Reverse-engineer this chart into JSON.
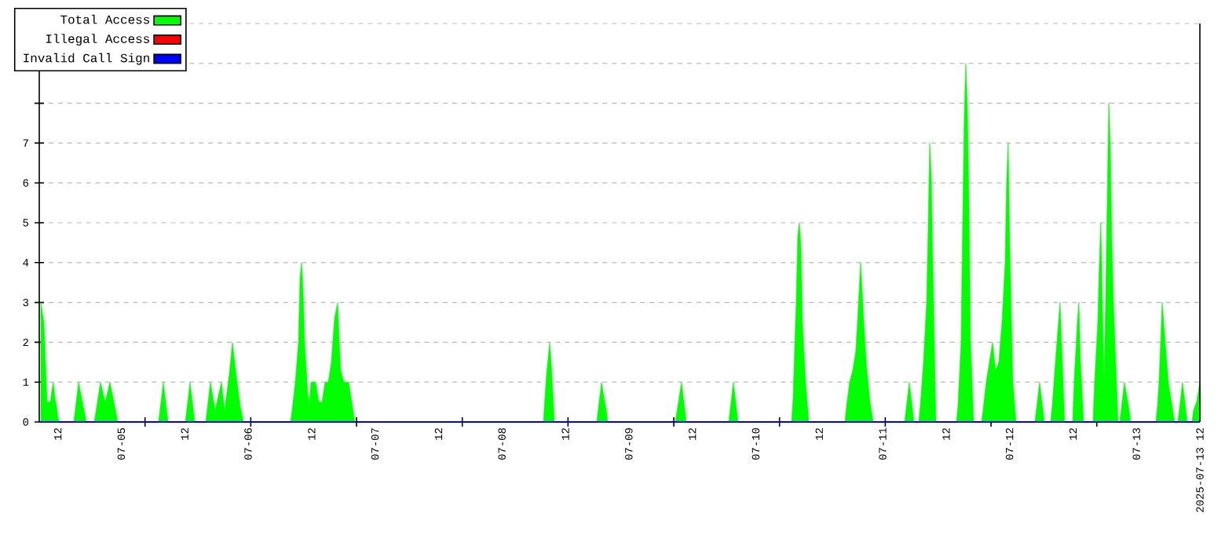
{
  "chart_data": {
    "type": "area",
    "xlim": [
      "2025-07-04T08:30",
      "2025-07-13T12:00"
    ],
    "xticks": [
      {
        "value": "2025-07-04T12:00",
        "label": "12"
      },
      {
        "value": "2025-07-05T00:00",
        "label": "07-05"
      },
      {
        "value": "2025-07-05T12:00",
        "label": "12"
      },
      {
        "value": "2025-07-06T00:00",
        "label": "07-06"
      },
      {
        "value": "2025-07-06T12:00",
        "label": "12"
      },
      {
        "value": "2025-07-07T00:00",
        "label": "07-07"
      },
      {
        "value": "2025-07-07T12:00",
        "label": "12"
      },
      {
        "value": "2025-07-08T00:00",
        "label": "07-08"
      },
      {
        "value": "2025-07-08T12:00",
        "label": "12"
      },
      {
        "value": "2025-07-09T00:00",
        "label": "07-09"
      },
      {
        "value": "2025-07-09T12:00",
        "label": "12"
      },
      {
        "value": "2025-07-10T00:00",
        "label": "07-10"
      },
      {
        "value": "2025-07-10T12:00",
        "label": "12"
      },
      {
        "value": "2025-07-11T00:00",
        "label": "07-11"
      },
      {
        "value": "2025-07-11T12:00",
        "label": "12"
      },
      {
        "value": "2025-07-12T00:00",
        "label": "07-12"
      },
      {
        "value": "2025-07-12T12:00",
        "label": "12"
      },
      {
        "value": "2025-07-13T00:00",
        "label": "07-13"
      },
      {
        "value": "2025-07-13T12:00",
        "label": "2025-07-13 12"
      },
      {
        "value": "2025-07-05T04:30",
        "label": null
      },
      {
        "value": "2025-07-06T00:30",
        "label": null
      },
      {
        "value": "2025-07-06T20:30",
        "label": null
      },
      {
        "value": "2025-07-07T16:30",
        "label": null
      },
      {
        "value": "2025-07-08T12:30",
        "label": null
      },
      {
        "value": "2025-07-09T08:30",
        "label": null
      },
      {
        "value": "2025-07-10T04:30",
        "label": null
      },
      {
        "value": "2025-07-11T00:30",
        "label": null
      },
      {
        "value": "2025-07-11T20:30",
        "label": null
      },
      {
        "value": "2025-07-12T16:30",
        "label": null
      }
    ],
    "ylim": [
      0,
      10
    ],
    "yticks": [
      0,
      1,
      2,
      3,
      4,
      5,
      6,
      7,
      {
        "value": 8,
        "label": null
      },
      {
        "value": 9,
        "label": null
      },
      {
        "value": 10,
        "label": null
      }
    ],
    "grid": "y",
    "legend": "top left",
    "series": [
      {
        "name": "Total Access",
        "color": "#00ff00",
        "x": [
          "2025-07-04T08:48",
          "2025-07-04T09:23",
          "2025-07-04T09:41",
          "2025-07-04T09:59",
          "2025-07-04T10:35",
          "2025-07-04T10:53",
          "2025-07-04T11:10",
          "2025-07-04T11:28",
          "2025-07-04T11:46",
          "2025-07-04T12:04",
          "2025-07-04T12:22",
          "2025-07-04T15:02",
          "2025-07-04T15:56",
          "2025-07-04T16:49",
          "2025-07-04T17:25",
          "2025-07-04T18:54",
          "2025-07-04T20:05",
          "2025-07-04T20:58",
          "2025-07-04T21:52",
          "2025-07-04T22:46",
          "2025-07-04T23:21",
          "2025-07-05T07:04",
          "2025-07-05T07:58",
          "2025-07-05T08:51",
          "2025-07-05T12:07",
          "2025-07-05T13:01",
          "2025-07-05T13:54",
          "2025-07-05T15:59",
          "2025-07-05T16:52",
          "2025-07-05T17:46",
          "2025-07-05T18:57",
          "2025-07-05T19:33",
          "2025-07-05T20:26",
          "2025-07-05T21:02",
          "2025-07-05T21:55",
          "2025-07-05T22:31",
          "2025-07-05T23:07",
          "2025-07-06T08:01",
          "2025-07-06T08:19",
          "2025-07-06T08:55",
          "2025-07-06T09:31",
          "2025-07-06T09:48",
          "2025-07-06T10:06",
          "2025-07-06T10:24",
          "2025-07-06T10:41",
          "2025-07-06T11:17",
          "2025-07-06T11:35",
          "2025-07-06T11:53",
          "2025-07-06T12:46",
          "2025-07-06T13:22",
          "2025-07-06T13:58",
          "2025-07-06T14:33",
          "2025-07-06T15:09",
          "2025-07-06T15:44",
          "2025-07-06T16:20",
          "2025-07-06T16:56",
          "2025-07-06T17:14",
          "2025-07-06T17:31",
          "2025-07-06T18:07",
          "2025-07-06T19:01",
          "2025-07-06T19:36",
          "2025-07-06T20:11",
          "2025-07-08T07:50",
          "2025-07-08T08:26",
          "2025-07-08T09:02",
          "2025-07-08T09:19",
          "2025-07-08T09:55",
          "2025-07-08T17:56",
          "2025-07-08T18:50",
          "2025-07-08T19:43",
          "2025-07-08T20:01",
          "2025-07-09T08:47",
          "2025-07-09T09:58",
          "2025-07-09T10:52",
          "2025-07-09T18:53",
          "2025-07-09T19:46",
          "2025-07-09T20:40",
          "2025-07-10T06:46",
          "2025-07-10T07:04",
          "2025-07-10T07:22",
          "2025-07-10T07:39",
          "2025-07-10T07:57",
          "2025-07-10T08:15",
          "2025-07-10T08:33",
          "2025-07-10T08:50",
          "2025-07-10T09:26",
          "2025-07-10T10:02",
          "2025-07-10T16:52",
          "2025-07-10T17:10",
          "2025-07-10T17:45",
          "2025-07-10T18:21",
          "2025-07-10T18:56",
          "2025-07-10T19:14",
          "2025-07-10T19:50",
          "2025-07-10T20:08",
          "2025-07-10T20:26",
          "2025-07-10T21:01",
          "2025-07-10T21:37",
          "2025-07-10T22:13",
          "2025-07-11T04:09",
          "2025-07-11T05:02",
          "2025-07-11T05:56",
          "2025-07-11T06:49",
          "2025-07-11T07:07",
          "2025-07-11T07:43",
          "2025-07-11T08:19",
          "2025-07-11T08:36",
          "2025-07-11T08:54",
          "2025-07-11T09:12",
          "2025-07-11T09:29",
          "2025-07-11T09:47",
          "2025-07-11T10:05",
          "2025-07-11T13:57",
          "2025-07-11T14:15",
          "2025-07-11T14:50",
          "2025-07-11T15:08",
          "2025-07-11T15:26",
          "2025-07-11T15:44",
          "2025-07-11T16:02",
          "2025-07-11T16:19",
          "2025-07-11T16:37",
          "2025-07-11T16:55",
          "2025-07-11T17:13",
          "2025-07-11T18:42",
          "2025-07-11T19:00",
          "2025-07-11T19:35",
          "2025-07-11T20:11",
          "2025-07-11T20:47",
          "2025-07-11T21:22",
          "2025-07-11T21:58",
          "2025-07-11T22:34",
          "2025-07-11T23:10",
          "2025-07-11T23:27",
          "2025-07-11T23:45",
          "2025-07-12T00:03",
          "2025-07-12T00:38",
          "2025-07-12T01:14",
          "2025-07-12T04:48",
          "2025-07-12T05:41",
          "2025-07-12T06:35",
          "2025-07-12T07:46",
          "2025-07-12T08:04",
          "2025-07-12T08:40",
          "2025-07-12T09:15",
          "2025-07-12T09:33",
          "2025-07-12T10:08",
          "2025-07-12T10:26",
          "2025-07-12T11:56",
          "2025-07-12T12:13",
          "2025-07-12T12:49",
          "2025-07-12T13:07",
          "2025-07-12T13:25",
          "2025-07-12T14:01",
          "2025-07-12T15:47",
          "2025-07-12T16:05",
          "2025-07-12T16:41",
          "2025-07-12T16:59",
          "2025-07-12T17:16",
          "2025-07-12T17:34",
          "2025-07-12T17:52",
          "2025-07-12T18:10",
          "2025-07-12T18:28",
          "2025-07-12T18:46",
          "2025-07-12T19:03",
          "2025-07-12T19:21",
          "2025-07-12T19:39",
          "2025-07-12T20:14",
          "2025-07-12T20:32",
          "2025-07-12T20:50",
          "2025-07-12T21:44",
          "2025-07-12T22:37",
          "2025-07-12T22:55",
          "2025-07-13T03:40",
          "2025-07-13T03:58",
          "2025-07-13T04:16",
          "2025-07-13T04:34",
          "2025-07-13T04:52",
          "2025-07-13T05:27",
          "2025-07-13T06:02",
          "2025-07-13T06:38",
          "2025-07-13T07:14",
          "2025-07-13T07:50",
          "2025-07-13T08:43",
          "2025-07-13T09:37",
          "2025-07-13T10:30",
          "2025-07-13T10:48",
          "2025-07-13T11:23",
          "2025-07-13T11:59"
        ],
        "values": [
          3,
          2.5,
          1.5,
          0.5,
          0.5,
          0.8,
          1,
          0.6,
          0.4,
          0.1,
          0,
          0,
          1,
          0.4,
          0,
          0,
          1,
          0.5,
          1,
          0.4,
          0,
          0,
          1,
          0,
          0,
          1,
          0,
          0,
          1,
          0.3,
          1,
          0.3,
          1.2,
          2,
          1,
          0.4,
          0,
          0,
          0.3,
          1,
          2,
          3.6,
          4,
          3.3,
          2,
          0.7,
          0.5,
          1,
          1,
          0.5,
          0.5,
          1,
          1,
          1.5,
          2.6,
          3,
          2,
          1.3,
          1,
          1,
          0.5,
          0,
          0,
          1.2,
          2,
          1.5,
          0,
          0,
          1,
          0.3,
          0,
          0,
          1,
          0,
          0,
          1,
          0,
          0,
          0.6,
          1.9,
          3,
          4.7,
          5,
          4.4,
          2.5,
          1,
          0,
          0,
          0.4,
          1,
          1.3,
          1.8,
          2.5,
          4,
          3.3,
          2.5,
          1.3,
          0.5,
          0,
          0,
          1,
          0,
          0,
          0.4,
          1.5,
          3,
          4.8,
          7,
          6.2,
          4,
          2,
          0,
          0,
          0.4,
          2,
          5,
          7.7,
          9,
          7.9,
          5.6,
          2,
          1,
          0,
          0,
          0.3,
          1,
          1.5,
          2,
          1.3,
          1.5,
          2.5,
          4,
          6.1,
          7,
          4.4,
          1,
          0,
          0,
          1,
          0,
          0,
          0.4,
          1.5,
          2.5,
          3,
          1,
          0,
          0,
          1,
          2.5,
          3,
          1.5,
          0,
          0,
          1,
          2.5,
          4,
          5,
          3,
          1,
          3,
          5.5,
          8,
          7,
          4.5,
          3,
          1,
          0,
          0,
          1,
          0.3,
          0,
          0,
          0.4,
          1,
          2,
          3,
          2,
          1,
          0.5,
          0,
          0,
          1,
          0,
          0,
          0.3,
          0.5,
          1
        ]
      },
      {
        "name": "Illegal Access",
        "color": "#ff0000",
        "type": "line"
      },
      {
        "name": "Invalid Call Sign",
        "color": "#0000ff",
        "type": "line",
        "x": [
          "2025-07-04T08:30",
          "2025-07-13T12:00"
        ],
        "values": [
          0,
          0
        ]
      }
    ]
  }
}
